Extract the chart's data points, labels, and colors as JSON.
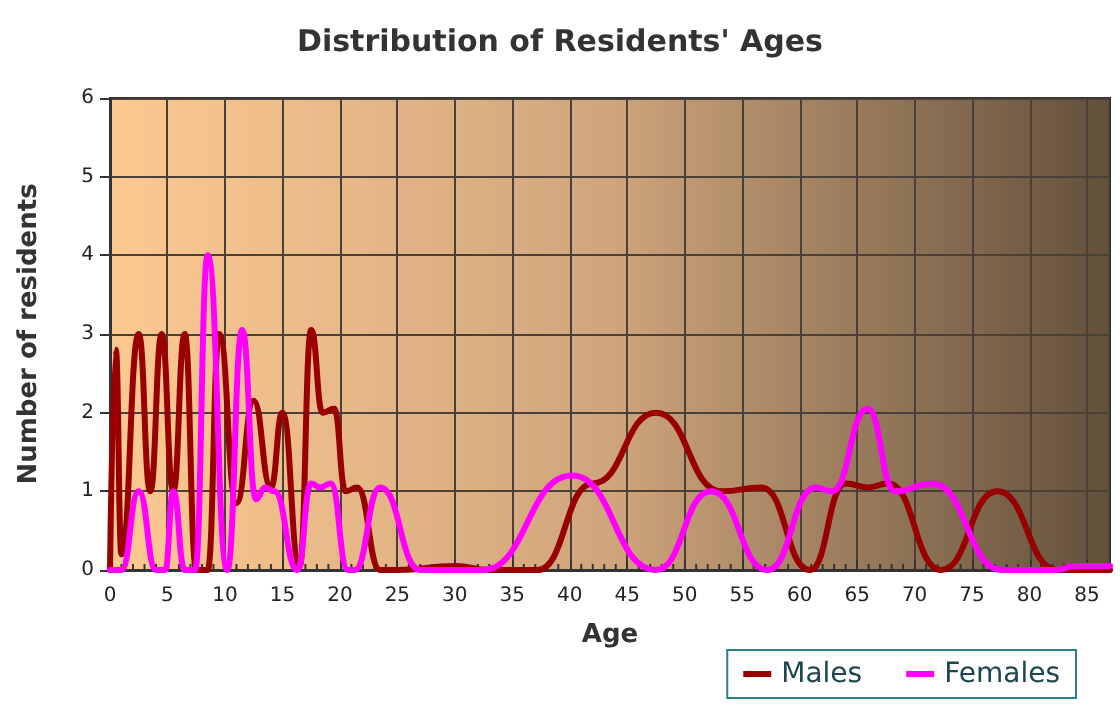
{
  "chart_data": {
    "type": "line",
    "title": "Distribution of Residents' Ages",
    "xlabel": "Age",
    "ylabel": "Number of residents",
    "xlim": [
      0,
      87
    ],
    "xticks": [
      0,
      5,
      10,
      15,
      20,
      25,
      30,
      35,
      40,
      45,
      50,
      55,
      60,
      65,
      70,
      75,
      80,
      85
    ],
    "ylim": [
      0,
      6
    ],
    "yticks": [
      0,
      1,
      2,
      3,
      4,
      5,
      6
    ],
    "grid": true,
    "legend": "bottom",
    "marker": "none",
    "line_style": "solid",
    "series": [
      {
        "name": "Males",
        "color": "#990000",
        "x": [
          0,
          0.5,
          1,
          2.5,
          3.5,
          4.5,
          5.5,
          6.5,
          7.5,
          8.5,
          9.5,
          11,
          12.5,
          14,
          15,
          16.5,
          17.5,
          18.5,
          19.5,
          20.5,
          21.5,
          23.5,
          25,
          30,
          33,
          37.2,
          42,
          47.5,
          53.2,
          56.7,
          60.9,
          64,
          65.9,
          67.7,
          72.3,
          77.2,
          82.4,
          87
        ],
        "values": [
          0,
          2.8,
          0.2,
          3,
          1,
          3,
          1,
          3,
          0,
          0,
          3,
          0.85,
          2.15,
          1.05,
          2,
          0.05,
          3.05,
          2,
          2.05,
          1,
          1.05,
          0,
          0,
          0.05,
          0,
          0,
          1.1,
          2,
          1,
          1.05,
          0,
          1.1,
          1.05,
          1.1,
          0,
          1,
          0,
          0
        ]
      },
      {
        "name": "Females",
        "color": "#ff00ff",
        "x": [
          0,
          1,
          2.5,
          4,
          4.8,
          5.5,
          6.5,
          7.4,
          8.5,
          10.2,
          11.5,
          12.7,
          13.5,
          14.3,
          16.3,
          17.5,
          18.3,
          19.2,
          20.7,
          21.3,
          23.5,
          27,
          32.4,
          40.2,
          47.5,
          52.3,
          57.2,
          61.4,
          62.8,
          65.9,
          68.3,
          71.5,
          77.6,
          82.3,
          84,
          87
        ],
        "values": [
          0,
          0,
          1,
          0,
          0,
          1,
          0,
          0,
          4,
          0,
          3.05,
          0.9,
          1.05,
          1,
          0,
          1.1,
          1.05,
          1.1,
          0,
          0,
          1.05,
          0,
          0,
          1.2,
          0,
          1,
          0,
          1.05,
          1,
          2.05,
          1,
          1.1,
          0,
          0,
          0.05,
          0.05
        ]
      }
    ]
  }
}
